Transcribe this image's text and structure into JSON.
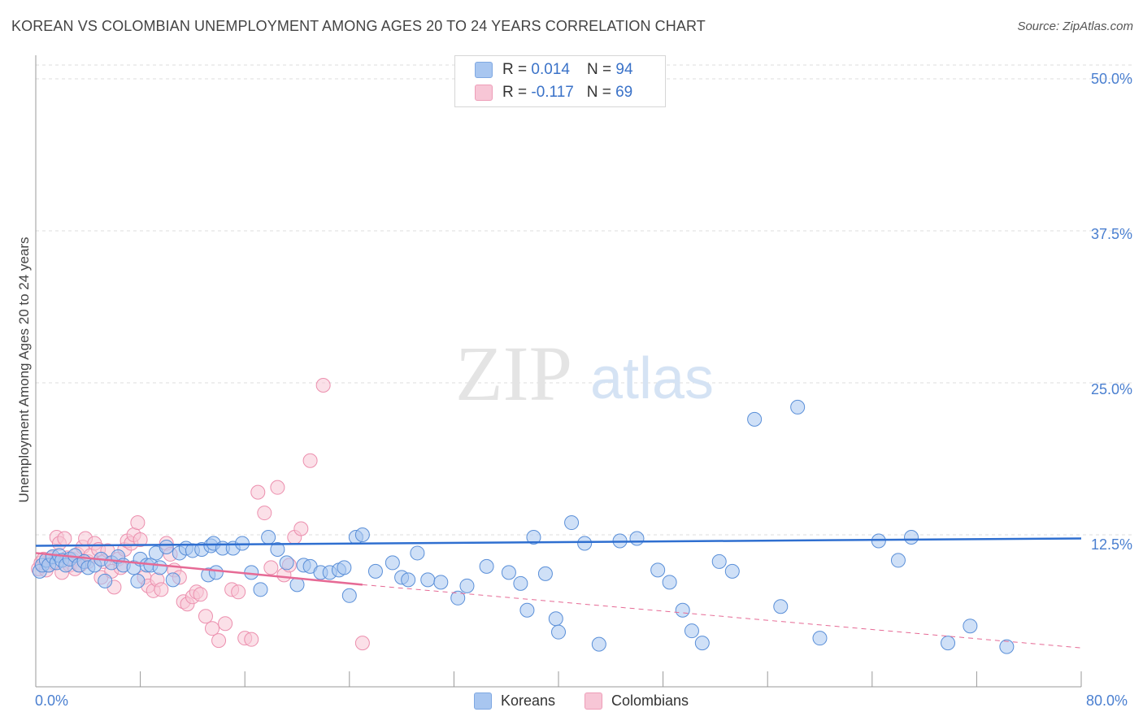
{
  "header": {
    "title": "KOREAN VS COLOMBIAN UNEMPLOYMENT AMONG AGES 20 TO 24 YEARS CORRELATION CHART",
    "source": "Source: ZipAtlas.com"
  },
  "watermark": {
    "zip": "ZIP",
    "atlas": "atlas"
  },
  "legend": {
    "koreans": {
      "r_label": "R = ",
      "r_value": "0.014",
      "n_label": "N = ",
      "n_value": "94",
      "color": "#a8c6f0"
    },
    "colombians": {
      "r_label": "R = ",
      "r_value": "-0.117",
      "n_label": "N = ",
      "n_value": "69",
      "color": "#f7b8cc"
    }
  },
  "bottom_legend": {
    "koreans": "Koreans",
    "colombians": "Colombians"
  },
  "colors": {
    "korean_line": "#2f6fd0",
    "colombian_line": "#e66a95",
    "tick_text": "#4a7fd0"
  },
  "chart_data": {
    "type": "scatter",
    "title": "KOREAN VS COLOMBIAN UNEMPLOYMENT AMONG AGES 20 TO 24 YEARS CORRELATION CHART",
    "xlabel": "",
    "ylabel": "Unemployment Among Ages 20 to 24 years",
    "xlim": [
      0,
      80
    ],
    "ylim": [
      0,
      50
    ],
    "x_ticks": [
      "0.0%",
      "80.0%"
    ],
    "y_ticks": [
      {
        "value": 12.5,
        "label": "12.5%"
      },
      {
        "value": 25.0,
        "label": "25.0%"
      },
      {
        "value": 37.5,
        "label": "37.5%"
      },
      {
        "value": 50.0,
        "label": "50.0%"
      }
    ],
    "grid": true,
    "legend_placement": "top-center",
    "series": [
      {
        "name": "Koreans",
        "color": "#a8c6f0",
        "trend": {
          "x": [
            0,
            80
          ],
          "y": [
            11.6,
            12.2
          ]
        },
        "points": [
          [
            0.3,
            9.5
          ],
          [
            0.5,
            10.0
          ],
          [
            0.8,
            10.4
          ],
          [
            1.0,
            10.0
          ],
          [
            1.3,
            10.7
          ],
          [
            1.6,
            10.2
          ],
          [
            1.8,
            10.8
          ],
          [
            2.0,
            10.4
          ],
          [
            2.3,
            10.0
          ],
          [
            2.6,
            10.5
          ],
          [
            3.0,
            10.8
          ],
          [
            3.3,
            10.0
          ],
          [
            3.7,
            10.3
          ],
          [
            4.0,
            9.8
          ],
          [
            4.5,
            10.0
          ],
          [
            5.0,
            10.5
          ],
          [
            5.3,
            8.7
          ],
          [
            5.8,
            10.2
          ],
          [
            6.3,
            10.7
          ],
          [
            6.7,
            10.0
          ],
          [
            7.5,
            9.8
          ],
          [
            7.8,
            8.7
          ],
          [
            8.0,
            10.5
          ],
          [
            8.5,
            10.0
          ],
          [
            8.8,
            10.0
          ],
          [
            9.2,
            11.0
          ],
          [
            9.5,
            9.8
          ],
          [
            10.0,
            11.5
          ],
          [
            10.5,
            8.8
          ],
          [
            11.0,
            11.0
          ],
          [
            11.5,
            11.4
          ],
          [
            12.0,
            11.2
          ],
          [
            12.7,
            11.3
          ],
          [
            13.2,
            9.2
          ],
          [
            13.4,
            11.6
          ],
          [
            13.6,
            11.8
          ],
          [
            13.8,
            9.4
          ],
          [
            14.3,
            11.4
          ],
          [
            15.1,
            11.4
          ],
          [
            15.8,
            11.8
          ],
          [
            16.5,
            9.4
          ],
          [
            17.2,
            8.0
          ],
          [
            17.8,
            12.3
          ],
          [
            18.5,
            11.3
          ],
          [
            19.2,
            10.2
          ],
          [
            20.0,
            8.4
          ],
          [
            20.5,
            10.0
          ],
          [
            21.0,
            9.9
          ],
          [
            21.8,
            9.4
          ],
          [
            22.5,
            9.4
          ],
          [
            23.2,
            9.6
          ],
          [
            23.6,
            9.8
          ],
          [
            24.0,
            7.5
          ],
          [
            24.5,
            12.3
          ],
          [
            25.0,
            12.5
          ],
          [
            26.0,
            9.5
          ],
          [
            27.3,
            10.2
          ],
          [
            28.0,
            9.0
          ],
          [
            28.5,
            8.8
          ],
          [
            29.2,
            11.0
          ],
          [
            30.0,
            8.8
          ],
          [
            31.0,
            8.6
          ],
          [
            32.3,
            7.3
          ],
          [
            33.0,
            8.3
          ],
          [
            34.5,
            9.9
          ],
          [
            36.2,
            9.4
          ],
          [
            37.1,
            8.5
          ],
          [
            37.6,
            6.3
          ],
          [
            38.1,
            12.3
          ],
          [
            39.0,
            9.3
          ],
          [
            39.8,
            5.6
          ],
          [
            40.0,
            4.5
          ],
          [
            41.0,
            13.5
          ],
          [
            42.0,
            11.8
          ],
          [
            43.1,
            3.5
          ],
          [
            44.7,
            12.0
          ],
          [
            46.0,
            12.2
          ],
          [
            47.6,
            9.6
          ],
          [
            48.5,
            8.6
          ],
          [
            49.5,
            6.3
          ],
          [
            50.2,
            4.6
          ],
          [
            51.0,
            3.6
          ],
          [
            52.3,
            10.3
          ],
          [
            53.3,
            9.5
          ],
          [
            55.0,
            22.0
          ],
          [
            57.0,
            6.6
          ],
          [
            58.3,
            23.0
          ],
          [
            60.0,
            4.0
          ],
          [
            64.5,
            12.0
          ],
          [
            66.0,
            10.4
          ],
          [
            67.0,
            12.3
          ],
          [
            69.8,
            3.6
          ],
          [
            71.5,
            5.0
          ],
          [
            74.3,
            3.3
          ]
        ]
      },
      {
        "name": "Colombians",
        "color": "#f7b8cc",
        "trend": {
          "x": [
            0,
            25
          ],
          "y": [
            11.0,
            8.4
          ]
        },
        "trend_extension": {
          "x": [
            25,
            80
          ],
          "y": [
            8.4,
            3.2
          ]
        },
        "points": [
          [
            0.2,
            9.7
          ],
          [
            0.4,
            10.2
          ],
          [
            0.6,
            10.5
          ],
          [
            0.8,
            9.6
          ],
          [
            1.0,
            10.0
          ],
          [
            1.2,
            10.6
          ],
          [
            1.4,
            10.2
          ],
          [
            1.6,
            12.3
          ],
          [
            1.8,
            11.8
          ],
          [
            2.0,
            9.4
          ],
          [
            2.2,
            12.2
          ],
          [
            2.4,
            10.6
          ],
          [
            2.6,
            10.0
          ],
          [
            2.8,
            10.5
          ],
          [
            3.0,
            9.7
          ],
          [
            3.2,
            10.9
          ],
          [
            3.4,
            10.0
          ],
          [
            3.6,
            11.5
          ],
          [
            3.8,
            12.2
          ],
          [
            4.0,
            10.3
          ],
          [
            4.2,
            10.8
          ],
          [
            4.5,
            11.8
          ],
          [
            4.8,
            11.3
          ],
          [
            5.0,
            9.0
          ],
          [
            5.2,
            10.3
          ],
          [
            5.5,
            11.2
          ],
          [
            5.8,
            9.5
          ],
          [
            6.0,
            8.2
          ],
          [
            6.3,
            10.5
          ],
          [
            6.5,
            9.8
          ],
          [
            6.8,
            11.3
          ],
          [
            7.0,
            12.0
          ],
          [
            7.3,
            11.8
          ],
          [
            7.5,
            12.5
          ],
          [
            7.8,
            13.5
          ],
          [
            8.0,
            12.1
          ],
          [
            8.3,
            9.0
          ],
          [
            8.6,
            8.3
          ],
          [
            9.0,
            7.9
          ],
          [
            9.3,
            8.8
          ],
          [
            9.6,
            8.0
          ],
          [
            10.0,
            11.8
          ],
          [
            10.3,
            10.9
          ],
          [
            10.6,
            9.6
          ],
          [
            11.0,
            9.0
          ],
          [
            11.3,
            7.0
          ],
          [
            11.6,
            6.8
          ],
          [
            12.0,
            7.4
          ],
          [
            12.3,
            7.8
          ],
          [
            12.6,
            7.6
          ],
          [
            13.0,
            5.8
          ],
          [
            13.5,
            4.8
          ],
          [
            14.0,
            3.8
          ],
          [
            14.5,
            5.2
          ],
          [
            15.0,
            8.0
          ],
          [
            15.5,
            7.8
          ],
          [
            16.0,
            4.0
          ],
          [
            16.5,
            3.9
          ],
          [
            17.0,
            16.0
          ],
          [
            17.5,
            14.3
          ],
          [
            18.0,
            9.8
          ],
          [
            18.5,
            16.4
          ],
          [
            19.0,
            9.2
          ],
          [
            19.4,
            10.0
          ],
          [
            19.8,
            12.3
          ],
          [
            20.3,
            13.0
          ],
          [
            21.0,
            18.6
          ],
          [
            22.0,
            24.8
          ],
          [
            25.0,
            3.6
          ]
        ]
      }
    ]
  }
}
